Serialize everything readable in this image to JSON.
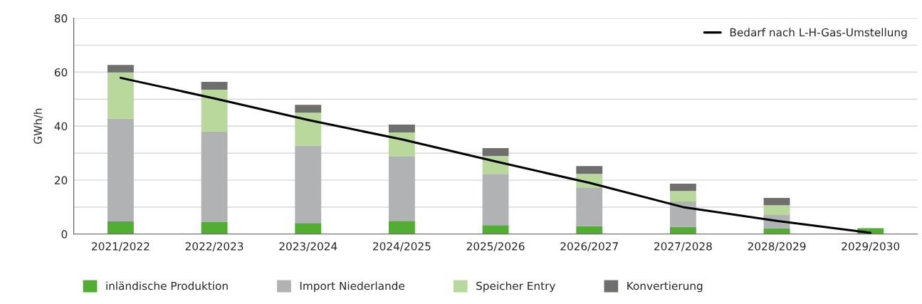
{
  "chart_data": {
    "type": "bar",
    "stacked": true,
    "ylabel": "GWh/h",
    "categories": [
      "2021/2022",
      "2022/2023",
      "2023/2024",
      "2024/2025",
      "2025/2026",
      "2026/2027",
      "2027/2028",
      "2028/2029",
      "2029/2030"
    ],
    "series": [
      {
        "name": "inländische Produktion",
        "color": "#52ae32",
        "values": [
          4.7,
          4.4,
          4.1,
          4.9,
          3.3,
          3.0,
          2.7,
          2.2,
          2.2
        ]
      },
      {
        "name": "Import Niederlande",
        "color": "#b1b2b4",
        "values": [
          38.1,
          33.7,
          28.7,
          23.8,
          19.0,
          14.3,
          9.4,
          5.1,
          null
        ]
      },
      {
        "name": "Speicher Entry",
        "color": "#b8d99b",
        "values": [
          17.1,
          15.4,
          12.2,
          9.0,
          6.7,
          5.0,
          3.9,
          3.4,
          null
        ]
      },
      {
        "name": "Konvertierung",
        "color": "#6f6f6e",
        "values": [
          2.8,
          2.9,
          2.9,
          2.9,
          2.9,
          2.9,
          2.7,
          2.7,
          null
        ]
      },
      {
        "name": "Bedarf nach L-H-Gas-Umstellung",
        "type": "line",
        "color": "#000000",
        "values": [
          57.9,
          50.3,
          42.3,
          35.1,
          26.9,
          19.0,
          10.0,
          4.9,
          0.5
        ]
      }
    ],
    "ylim": [
      0,
      80
    ],
    "yticks": [
      0,
      {
        "value": 10,
        "label": null
      },
      20,
      {
        "value": 30,
        "label": null
      },
      40,
      {
        "value": 50,
        "label": null
      },
      60,
      {
        "value": 70,
        "label": null
      },
      80
    ],
    "grid": "y",
    "legend": "bottom"
  }
}
